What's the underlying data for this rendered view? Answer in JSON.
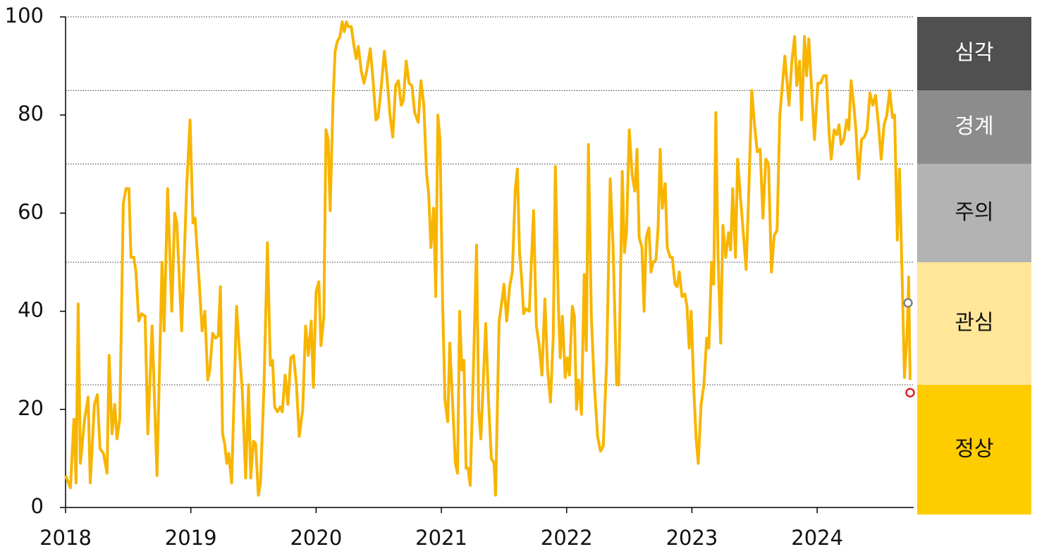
{
  "chart_data": {
    "type": "line",
    "x": [
      2018.0,
      2018.039,
      2018.067,
      2018.084,
      2018.101,
      2018.118,
      2018.152,
      2018.18,
      2018.197,
      2018.23,
      2018.253,
      2018.275,
      2018.303,
      2018.331,
      2018.348,
      2018.371,
      2018.393,
      2018.41,
      2018.433,
      2018.461,
      2018.483,
      2018.506,
      2018.522,
      2018.545,
      2018.562,
      2018.584,
      2018.607,
      2018.635,
      2018.657,
      2018.691,
      2018.73,
      2018.77,
      2018.787,
      2018.815,
      2018.848,
      2018.871,
      2018.888,
      2018.927,
      2018.966,
      2018.994,
      2019.017,
      2019.034,
      2019.062,
      2019.09,
      2019.112,
      2019.135,
      2019.152,
      2019.174,
      2019.197,
      2019.219,
      2019.236,
      2019.253,
      2019.27,
      2019.287,
      2019.303,
      2019.326,
      2019.365,
      2019.388,
      2019.41,
      2019.438,
      2019.461,
      2019.478,
      2019.5,
      2019.517,
      2019.539,
      2019.556,
      2019.584,
      2019.612,
      2019.635,
      2019.652,
      2019.669,
      2019.691,
      2019.713,
      2019.73,
      2019.753,
      2019.775,
      2019.798,
      2019.82,
      2019.843,
      2019.865,
      2019.893,
      2019.916,
      2019.938,
      2019.961,
      2019.978,
      2020.0,
      2020.022,
      2020.039,
      2020.062,
      2020.079,
      2020.096,
      2020.112,
      2020.135,
      2020.152,
      2020.169,
      2020.191,
      2020.208,
      2020.225,
      2020.242,
      2020.258,
      2020.281,
      2020.303,
      2020.32,
      2020.337,
      2020.36,
      2020.382,
      2020.404,
      2020.433,
      2020.455,
      2020.478,
      2020.494,
      2020.517,
      2020.545,
      2020.567,
      2020.59,
      2020.612,
      2020.635,
      2020.657,
      2020.68,
      2020.697,
      2020.719,
      2020.742,
      2020.764,
      2020.787,
      2020.815,
      2020.837,
      2020.86,
      2020.882,
      2020.899,
      2020.916,
      2020.938,
      2020.955,
      2020.972,
      2020.989,
      2021.011,
      2021.028,
      2021.051,
      2021.067,
      2021.09,
      2021.112,
      2021.129,
      2021.146,
      2021.163,
      2021.18,
      2021.197,
      2021.213,
      2021.23,
      2021.258,
      2021.281,
      2021.298,
      2021.315,
      2021.354,
      2021.376,
      2021.399,
      2021.421,
      2021.433,
      2021.461,
      2021.483,
      2021.5,
      2021.522,
      2021.545,
      2021.567,
      2021.59,
      2021.607,
      2021.624,
      2021.64,
      2021.657,
      2021.674,
      2021.702,
      2021.736,
      2021.758,
      2021.781,
      2021.803,
      2021.826,
      2021.848,
      2021.871,
      2021.893,
      2021.91,
      2021.933,
      2021.949,
      2021.966,
      2021.989,
      2022.006,
      2022.022,
      2022.045,
      2022.062,
      2022.079,
      2022.096,
      2022.118,
      2022.14,
      2022.157,
      2022.174,
      2022.197,
      2022.219,
      2022.247,
      2022.27,
      2022.292,
      2022.32,
      2022.348,
      2022.371,
      2022.399,
      2022.416,
      2022.444,
      2022.461,
      2022.478,
      2022.5,
      2022.522,
      2022.545,
      2022.562,
      2022.579,
      2022.601,
      2022.618,
      2022.635,
      2022.657,
      2022.674,
      2022.691,
      2022.713,
      2022.73,
      2022.747,
      2022.764,
      2022.787,
      2022.803,
      2022.826,
      2022.843,
      2022.865,
      2022.882,
      2022.899,
      2022.921,
      2022.944,
      2022.961,
      2022.978,
      2022.994,
      2023.017,
      2023.034,
      2023.051,
      2023.073,
      2023.096,
      2023.118,
      2023.135,
      2023.157,
      2023.174,
      2023.191,
      2023.208,
      2023.23,
      2023.247,
      2023.27,
      2023.292,
      2023.309,
      2023.326,
      2023.348,
      2023.365,
      2023.388,
      2023.404,
      2023.433,
      2023.455,
      2023.478,
      2023.5,
      2023.522,
      2023.545,
      2023.567,
      2023.59,
      2023.612,
      2023.635,
      2023.657,
      2023.68,
      2023.702,
      2023.742,
      2023.775,
      2023.798,
      2023.82,
      2023.837,
      2023.86,
      2023.876,
      2023.899,
      2023.916,
      2023.933,
      2023.955,
      2023.978,
      2024.006,
      2024.028,
      2024.051,
      2024.073,
      2024.096,
      2024.112,
      2024.135,
      2024.157,
      2024.174,
      2024.191,
      2024.213,
      2024.236,
      2024.253,
      2024.27,
      2024.292,
      2024.309,
      2024.331,
      2024.354,
      2024.376,
      2024.399,
      2024.421,
      2024.444,
      2024.466,
      2024.489,
      2024.511,
      2024.534,
      2024.556,
      2024.579,
      2024.601,
      2024.618,
      2024.64,
      2024.657,
      2024.68,
      2024.697,
      2024.719,
      2024.73,
      2024.742
    ],
    "series": [
      {
        "color": "#f8b500",
        "values": [
          6.5,
          4,
          18,
          5,
          41.5,
          9,
          18,
          22.5,
          5,
          21,
          23,
          12,
          11,
          7,
          31,
          15,
          21,
          14,
          18,
          62,
          65,
          65,
          51,
          51,
          48,
          38,
          39.5,
          39,
          15,
          37,
          6.5,
          50,
          36,
          65,
          40,
          60,
          58,
          36,
          65,
          79,
          58,
          59,
          48,
          36,
          40,
          26,
          28,
          35.5,
          34.5,
          35,
          45,
          15,
          13,
          9,
          11,
          5,
          41,
          32,
          24,
          6,
          25,
          6,
          13.5,
          13,
          2.5,
          5,
          25,
          54,
          29,
          30,
          20.5,
          19.5,
          20.5,
          19.5,
          27,
          21,
          30.5,
          31,
          25,
          14.5,
          20,
          37,
          31,
          38,
          24.5,
          44,
          46,
          33,
          39,
          77,
          75,
          60.5,
          83,
          93,
          95,
          96,
          99,
          97,
          99,
          98,
          98,
          94,
          91.5,
          94,
          89,
          86.5,
          89,
          93.5,
          87,
          79,
          79.5,
          85,
          93,
          87.5,
          80,
          75.5,
          86,
          87,
          82,
          83,
          91,
          86.5,
          86,
          80.5,
          78.5,
          87,
          82,
          68,
          64,
          53,
          61,
          43,
          80,
          75,
          41,
          22,
          17.5,
          33.5,
          21,
          9,
          7,
          40,
          28,
          30,
          8,
          8,
          4.5,
          30,
          53.5,
          20,
          14,
          37.5,
          22,
          10,
          9,
          2.5,
          38,
          42,
          45.5,
          38,
          45,
          48,
          65,
          69,
          52,
          47,
          39.5,
          40.5,
          40,
          60.5,
          37,
          33,
          27,
          42.5,
          28,
          21.5,
          35,
          69.5,
          42,
          30.5,
          39,
          26.5,
          30.5,
          27,
          41,
          39,
          20,
          26,
          19,
          47.5,
          32,
          74,
          39,
          26,
          14.5,
          11.5,
          12.5,
          30,
          67,
          53,
          25,
          25,
          68.5,
          52,
          56,
          77,
          68,
          64.5,
          73,
          55,
          53,
          40,
          55,
          57,
          48,
          50,
          50.5,
          57,
          73,
          61,
          66,
          53,
          51,
          51,
          45.5,
          45,
          48,
          43,
          43.5,
          41,
          32.5,
          40,
          23,
          14,
          9,
          21,
          25,
          34.5,
          32.5,
          50,
          45.5,
          80.5,
          52,
          33.5,
          57.5,
          51,
          56,
          52.5,
          65,
          51,
          71,
          63,
          58,
          48.5,
          65,
          85,
          78,
          72.5,
          73,
          59,
          71,
          70,
          48,
          55.5,
          56.5,
          80,
          92,
          82,
          91,
          96,
          86,
          91,
          79,
          96,
          88,
          95.5,
          85.5,
          75,
          86.5,
          86.5,
          88,
          88,
          76,
          71,
          77,
          76,
          78,
          74,
          75,
          79,
          77,
          87,
          82,
          77,
          67,
          75,
          75.5,
          77,
          84.5,
          82,
          84,
          78,
          71,
          78,
          80,
          85,
          79.5,
          80,
          54.5,
          69,
          45,
          26.5,
          36,
          47,
          26
        ]
      }
    ],
    "markers": [
      {
        "x": 2024.725,
        "y": 41.7,
        "color": "#7f7f7f"
      },
      {
        "x": 2024.742,
        "y": 23.4,
        "color": "#e02020"
      }
    ],
    "zones": [
      {
        "name": "심각",
        "lo": 85,
        "hi": 100,
        "color": "#505050",
        "text_color": "#ffffff"
      },
      {
        "name": "경계",
        "lo": 70,
        "hi": 85,
        "color": "#8c8c8c",
        "text_color": "#ffffff"
      },
      {
        "name": "주의",
        "lo": 50,
        "hi": 70,
        "color": "#b3b3b3",
        "text_color": "#111111"
      },
      {
        "name": "관심",
        "lo": 25,
        "hi": 50,
        "color": "#ffe699",
        "text_color": "#111111"
      },
      {
        "name": "정상",
        "lo": 0,
        "hi": 25,
        "color": "#ffcc00",
        "text_color": "#111111"
      }
    ],
    "xlim": [
      2018,
      2024.77
    ],
    "xticks": [
      2018,
      2019,
      2020,
      2021,
      2022,
      2023,
      2024
    ],
    "ylim": [
      0,
      100
    ],
    "yticks": [
      0,
      20,
      40,
      60,
      80,
      100
    ]
  }
}
